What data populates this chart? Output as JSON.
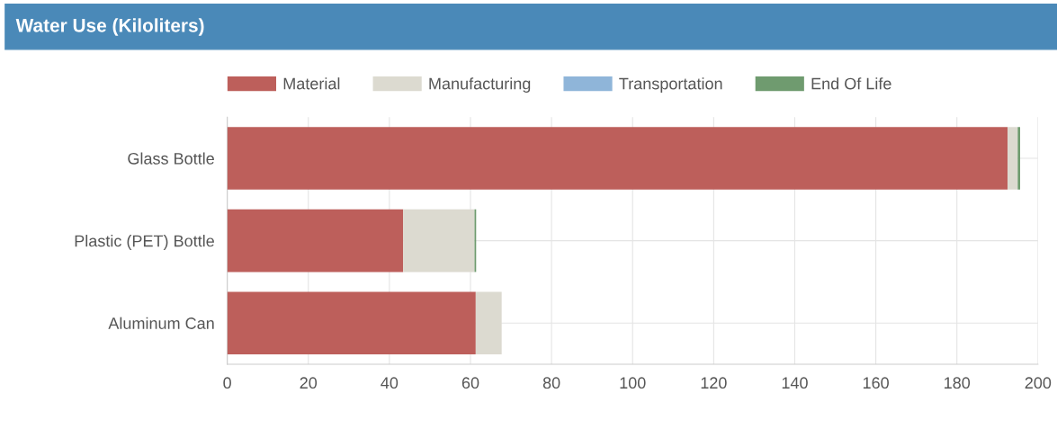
{
  "chart_data": {
    "type": "bar",
    "title": "Water Use (Kiloliters)",
    "orientation": "horizontal",
    "stacked": true,
    "categories": [
      "Glass Bottle",
      "Plastic (PET) Bottle",
      "Aluminum Can"
    ],
    "series": [
      {
        "name": "Material",
        "color": "#bd5f5b",
        "values": [
          192.5,
          43.4,
          61.3
        ]
      },
      {
        "name": "Manufacturing",
        "color": "#dcdad0",
        "values": [
          2.5,
          17.6,
          6.4
        ]
      },
      {
        "name": "Transportation",
        "color": "#8fb5d9",
        "values": [
          null,
          null,
          null
        ]
      },
      {
        "name": "End Of Life",
        "color": "#6f9b6f",
        "values": [
          0.6,
          0.4,
          null
        ]
      }
    ],
    "xlim": [
      0,
      200
    ],
    "xticks": [
      0,
      20,
      40,
      60,
      80,
      100,
      120,
      140,
      160,
      180,
      200
    ],
    "grid": true,
    "legend": "top"
  }
}
